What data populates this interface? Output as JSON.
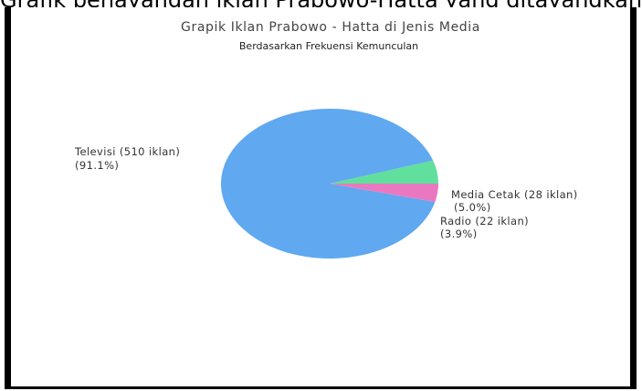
{
  "top_caption": "Grafik penayangan iklan Prabowo-Hatta yang ditayangkan ...",
  "chart_data": {
    "type": "pie",
    "title": "Grapik Iklan Prabowo - Hatta di Jenis Media",
    "subtitle": "Berdasarkan Frekuensi Kemunculan",
    "slices": [
      {
        "label": "Televisi (510 iklan)",
        "pct_label": "(91.1%)",
        "value": 510,
        "percent": 91.1,
        "color": "#60a8f0"
      },
      {
        "label": "Media Cetak (28 iklan)",
        "pct_label": "(5.0%)",
        "value": 28,
        "percent": 5.0,
        "color": "#60e09c"
      },
      {
        "label": "Radio (22 iklan)",
        "pct_label": "(3.9%)",
        "value": 22,
        "percent": 3.9,
        "color": "#ea78c0"
      }
    ]
  }
}
